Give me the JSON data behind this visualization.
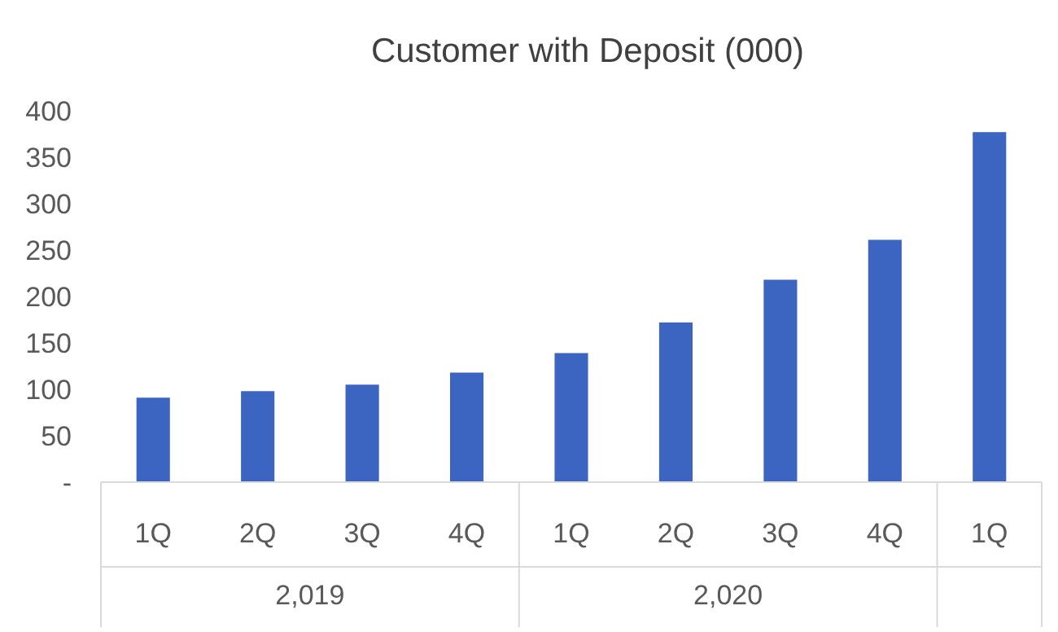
{
  "chart_data": {
    "type": "bar",
    "title": "Customer with Deposit (000)",
    "categories": [
      "1Q",
      "2Q",
      "3Q",
      "4Q",
      "1Q",
      "2Q",
      "3Q",
      "4Q",
      "1Q"
    ],
    "values": [
      91,
      98,
      105,
      118,
      139,
      172,
      218,
      261,
      377
    ],
    "color": "#3b65c0",
    "ylim": [
      0,
      400
    ],
    "yticks": [
      {
        "value": 0,
        "label": "-"
      },
      50,
      100,
      150,
      200,
      250,
      300,
      350,
      400
    ],
    "annotations": [
      "2,019",
      "2,020"
    ]
  }
}
